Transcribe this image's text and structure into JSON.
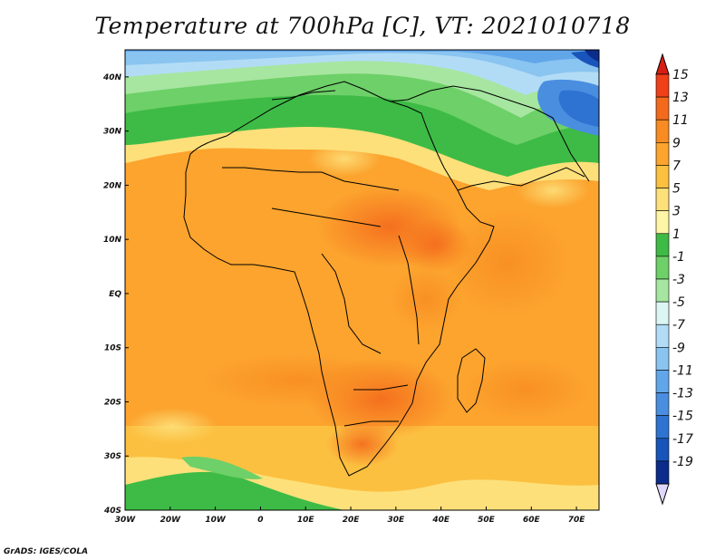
{
  "title": "Temperature at 700hPa [C], VT: 2021010718",
  "credit": "GrADS: IGES/COLA",
  "map": {
    "lon_range": [
      -30,
      75
    ],
    "lat_range": [
      -40,
      45
    ],
    "lon_ticks": [
      {
        "value": -30,
        "label": "30W"
      },
      {
        "value": -20,
        "label": "20W"
      },
      {
        "value": -10,
        "label": "10W"
      },
      {
        "value": 0,
        "label": "0"
      },
      {
        "value": 10,
        "label": "10E"
      },
      {
        "value": 20,
        "label": "20E"
      },
      {
        "value": 30,
        "label": "30E"
      },
      {
        "value": 40,
        "label": "40E"
      },
      {
        "value": 50,
        "label": "50E"
      },
      {
        "value": 60,
        "label": "60E"
      },
      {
        "value": 70,
        "label": "70E"
      }
    ],
    "lat_ticks": [
      {
        "value": 40,
        "label": "40N"
      },
      {
        "value": 30,
        "label": "30N"
      },
      {
        "value": 20,
        "label": "20N"
      },
      {
        "value": 10,
        "label": "10N"
      },
      {
        "value": 0,
        "label": "EQ"
      },
      {
        "value": -10,
        "label": "10S"
      },
      {
        "value": -20,
        "label": "20S"
      },
      {
        "value": -30,
        "label": "30S"
      },
      {
        "value": -40,
        "label": "40S"
      }
    ]
  },
  "colorbar": {
    "levels": [
      15,
      13,
      11,
      9,
      7,
      5,
      3,
      1,
      -1,
      -3,
      -5,
      -7,
      -9,
      -11,
      -13,
      -15,
      -17,
      -19
    ],
    "colors": [
      "#f04018",
      "#f46a1c",
      "#f88c22",
      "#fca42e",
      "#fcc040",
      "#fde07a",
      "#fef6a6",
      "#3ebb46",
      "#6ed068",
      "#a6e6a0",
      "#dcf6f4",
      "#b2dcf6",
      "#8ac4f0",
      "#62a6ea",
      "#4a8ee0",
      "#2e72d2",
      "#1854ba",
      "#0c2c8c"
    ],
    "top_arrow_color": "#d81e14",
    "bottom_arrow_color": "#e0d8fc"
  }
}
